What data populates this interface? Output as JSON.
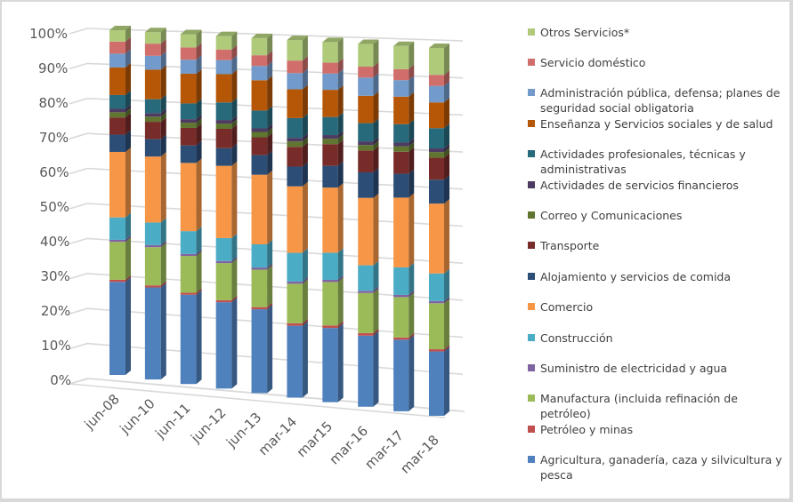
{
  "chart_data": {
    "type": "bar",
    "subtype": "3d-stacked-100-percent",
    "title": "",
    "xlabel": "",
    "ylabel": "",
    "ylim": [
      0,
      100
    ],
    "y_ticks": [
      "0%",
      "10%",
      "20%",
      "30%",
      "40%",
      "50%",
      "60%",
      "70%",
      "80%",
      "90%",
      "100%"
    ],
    "grid": true,
    "legend_position": "right",
    "categories": [
      "jun-08",
      "jun-10",
      "jun-11",
      "jun-12",
      "jun-13",
      "mar-14",
      "mar15",
      "mar-16",
      "mar-17",
      "mar-18"
    ],
    "series": [
      {
        "name": "Agricultura, ganadería, caza y silvicultura y pesca",
        "color": "#4f81bd",
        "values": [
          27.0,
          26.5,
          25.5,
          24.5,
          23.5,
          20.0,
          20.5,
          19.5,
          19.5,
          17.5
        ]
      },
      {
        "name": "Petróleo y minas",
        "color": "#c0504d",
        "values": [
          0.6,
          0.6,
          0.6,
          0.6,
          0.6,
          0.7,
          0.7,
          0.7,
          0.6,
          0.6
        ]
      },
      {
        "name": "Manufactura (incluida refinación de petróleo)",
        "color": "#9bbb59",
        "values": [
          11.0,
          11.0,
          10.5,
          10.5,
          10.5,
          11.0,
          12.0,
          11.0,
          11.0,
          12.5
        ]
      },
      {
        "name": "Suministro de electricidad y agua",
        "color": "#8064a2",
        "values": [
          0.6,
          0.6,
          0.6,
          0.6,
          0.6,
          0.6,
          0.6,
          0.6,
          0.6,
          0.6
        ]
      },
      {
        "name": "Construcción",
        "color": "#4bacc6",
        "values": [
          6.5,
          6.5,
          6.5,
          6.5,
          6.5,
          8.0,
          7.5,
          7.0,
          7.5,
          7.5
        ]
      },
      {
        "name": "Comercio",
        "color": "#f79646",
        "values": [
          19.0,
          19.0,
          19.5,
          20.5,
          19.5,
          18.5,
          18.0,
          18.5,
          19.0,
          19.0
        ]
      },
      {
        "name": "Alojamiento y servicios de comida",
        "color": "#2c4d75",
        "values": [
          5.0,
          5.0,
          5.0,
          5.0,
          5.5,
          5.5,
          6.0,
          7.0,
          6.5,
          6.5
        ]
      },
      {
        "name": "Transporte",
        "color": "#772c2a",
        "values": [
          5.0,
          5.0,
          5.0,
          5.5,
          5.0,
          5.5,
          6.0,
          6.0,
          6.0,
          6.0
        ]
      },
      {
        "name": "Correo y Comunicaciones",
        "color": "#5f7530",
        "values": [
          1.5,
          1.5,
          1.5,
          1.5,
          1.5,
          1.5,
          1.5,
          1.5,
          1.5,
          1.5
        ]
      },
      {
        "name": "Actividades de servicios financieros",
        "color": "#4d3b62",
        "values": [
          1.0,
          1.0,
          1.0,
          1.0,
          1.0,
          1.0,
          1.0,
          1.0,
          1.0,
          1.0
        ]
      },
      {
        "name": "Actividades profesionales, técnicas y administrativas",
        "color": "#276a7c",
        "values": [
          4.0,
          4.0,
          4.5,
          5.0,
          5.0,
          5.5,
          5.0,
          5.0,
          5.0,
          5.5
        ]
      },
      {
        "name": "Enseñanza  y Servicios sociales y de salud",
        "color": "#b65708",
        "values": [
          8.0,
          8.5,
          8.5,
          8.0,
          8.5,
          8.0,
          7.5,
          7.5,
          7.5,
          7.0
        ]
      },
      {
        "name": "Administración pública, defensa; planes de seguridad social obligatoria",
        "color": "#729aca",
        "values": [
          4.0,
          4.0,
          4.0,
          4.0,
          4.0,
          4.5,
          4.5,
          5.0,
          4.5,
          4.5
        ]
      },
      {
        "name": "Servicio doméstico",
        "color": "#d06e6b",
        "values": [
          3.5,
          3.5,
          3.5,
          3.0,
          3.0,
          3.5,
          3.0,
          3.0,
          3.0,
          3.0
        ]
      },
      {
        "name": "Otros Servicios*",
        "color": "#afcb7a",
        "values": [
          3.3,
          3.3,
          3.8,
          3.8,
          4.8,
          5.7,
          5.7,
          6.2,
          6.3,
          7.3
        ]
      }
    ]
  }
}
